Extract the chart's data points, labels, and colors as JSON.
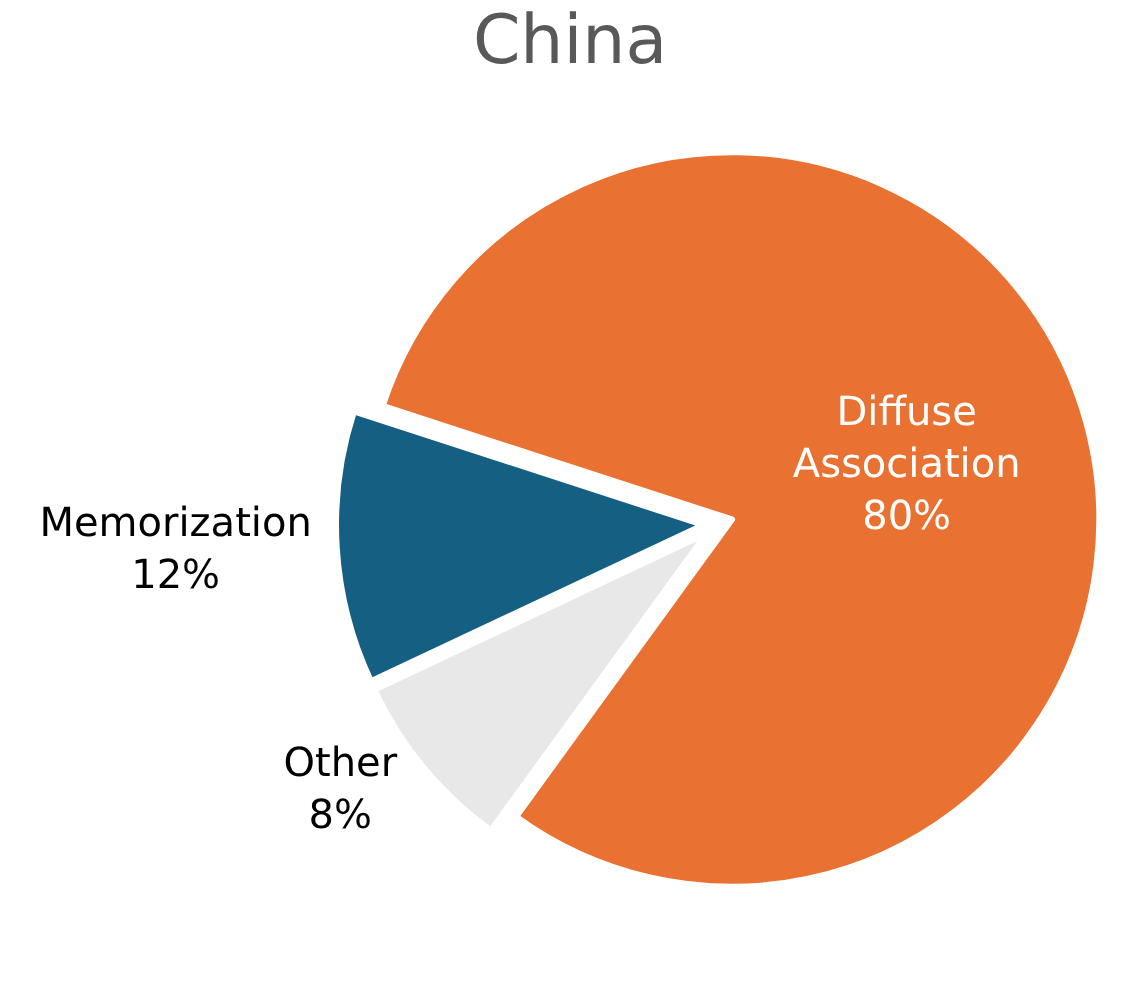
{
  "chart_data": {
    "type": "pie",
    "title": "China",
    "categories": [
      "Diffuse Association",
      "Other",
      "Memorization"
    ],
    "values": [
      80,
      8,
      12
    ],
    "value_labels": [
      "80%",
      "8%",
      "12%"
    ],
    "colors": [
      "#e97132",
      "#e8e8e8",
      "#156082"
    ],
    "legend": false
  }
}
